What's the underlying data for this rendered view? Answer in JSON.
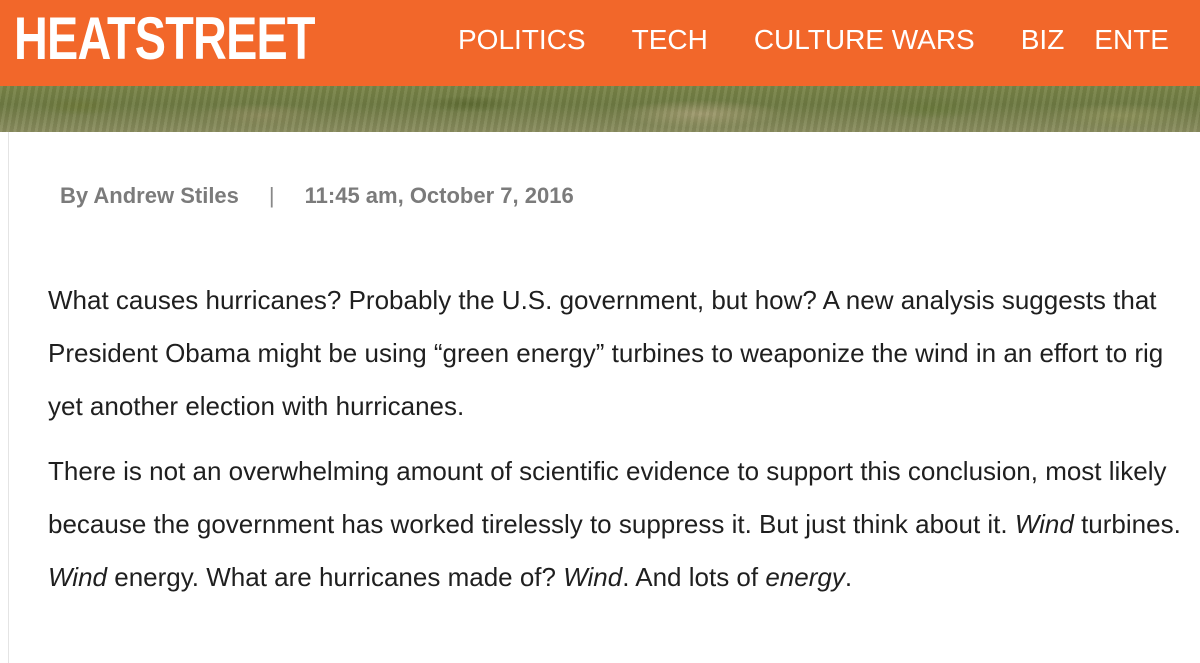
{
  "header": {
    "logo_text": "HEATSTREET",
    "nav": [
      {
        "label": "POLITICS"
      },
      {
        "label": "TECH"
      },
      {
        "label": "CULTURE WARS"
      },
      {
        "label": "BIZ"
      },
      {
        "label": "ENTE"
      }
    ],
    "brand_color": "#f2672a"
  },
  "article": {
    "author": "By Andrew Stiles",
    "separator": "|",
    "timestamp": "11:45 am, October 7, 2016",
    "paragraph_1": "What causes hurricanes? Probably the U.S. government, but how? A new analysis suggests that President Obama might be using “green energy” turbines to weaponize the wind in an effort to rig yet another election with hurricanes.",
    "paragraph_2": {
      "part_1": "There is not an overwhelming amount of scientific evidence to support this conclusion, most likely because the government has worked tirelessly to suppress it. But just think about it. ",
      "em_1": "Wind",
      "part_2": " turbines. ",
      "em_2": "Wind",
      "part_3": " energy. What are hurricanes made of? ",
      "em_3": "Wind",
      "part_4": ". And lots of ",
      "em_4": "energy",
      "part_5": "."
    }
  }
}
